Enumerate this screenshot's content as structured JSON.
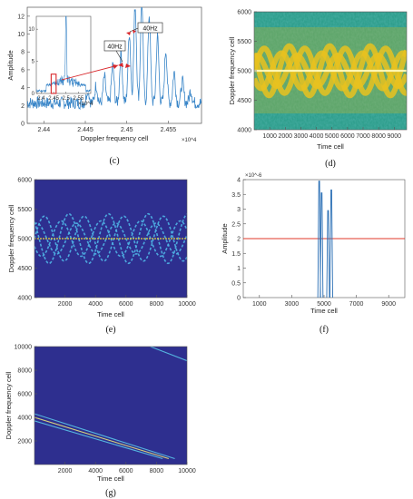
{
  "chart_data": [
    {
      "id": "c",
      "type": "line",
      "panel_label": "(c)",
      "xlabel": "Doppler frequency cell",
      "ylabel": "Amplitude",
      "x_exponent": "×10^4",
      "xlim": [
        2.438,
        2.459
      ],
      "ylim": [
        0,
        13
      ],
      "x_ticks": [
        2.44,
        2.445,
        2.45,
        2.455
      ],
      "x_tick_labels": [
        "2.44",
        "2.445",
        "2.45",
        "2.455"
      ],
      "y_ticks": [
        0,
        2,
        4,
        6,
        8,
        10,
        12
      ],
      "y_tick_labels": [
        "0",
        "2",
        "4",
        "6",
        "8",
        "10",
        "12"
      ],
      "annotations": [
        "40Hz",
        "40Hz"
      ],
      "peaks": [
        {
          "x": 2.4453,
          "y": 3.2
        },
        {
          "x": 2.4463,
          "y": 3.6
        },
        {
          "x": 2.4473,
          "y": 4.5
        },
        {
          "x": 2.4483,
          "y": 5.8
        },
        {
          "x": 2.4493,
          "y": 7.2
        },
        {
          "x": 2.4503,
          "y": 9.5
        },
        {
          "x": 2.451,
          "y": 12.5
        },
        {
          "x": 2.4518,
          "y": 12.8
        },
        {
          "x": 2.4527,
          "y": 11.5
        },
        {
          "x": 2.4537,
          "y": 9.0
        },
        {
          "x": 2.4547,
          "y": 7.5
        },
        {
          "x": 2.4557,
          "y": 5.0
        },
        {
          "x": 2.4567,
          "y": 4.0
        },
        {
          "x": 2.4577,
          "y": 3.0
        }
      ],
      "baseline": 1.6,
      "inset": {
        "xlim": [
          2.38,
          2.6
        ],
        "ylim": [
          0,
          12
        ],
        "x_ticks": [
          2.4,
          2.45,
          2.5,
          2.55
        ],
        "x_tick_labels": [
          "2.4",
          "2.45",
          "2.5",
          "2.55"
        ],
        "y_ticks": [
          0,
          5,
          10
        ],
        "y_tick_labels": [
          "0",
          "5",
          "10"
        ],
        "x_exponent": "×10^4",
        "highlight_xrange": [
          2.44,
          2.46
        ],
        "highlight_yrange": [
          0,
          3
        ],
        "main_peak": {
          "x": 2.5,
          "y": 11.5
        }
      }
    },
    {
      "id": "d",
      "type": "heatmap",
      "panel_label": "(d)",
      "xlabel": "Time cell",
      "ylabel": "Doppler frequency cell",
      "xlim": [
        0,
        9800
      ],
      "ylim": [
        4000,
        6000
      ],
      "x_ticks": [
        1000,
        2000,
        3000,
        4000,
        5000,
        6000,
        7000,
        8000,
        9000
      ],
      "x_tick_labels": [
        "1000",
        "2000",
        "3000",
        "4000",
        "5000",
        "6000",
        "7000",
        "8000",
        "9000"
      ],
      "y_ticks": [
        4000,
        4500,
        5000,
        5500,
        6000
      ],
      "y_tick_labels": [
        "4000",
        "4500",
        "5000",
        "5500",
        "6000"
      ],
      "center_line": 5000,
      "colors": {
        "background": "#2e9e8c",
        "signal": "#e9c21f",
        "line": "#fff6b0"
      }
    },
    {
      "id": "e",
      "type": "heatmap",
      "panel_label": "(e)",
      "xlabel": "Time cell",
      "ylabel": "Doppler frequency cell",
      "xlim": [
        0,
        10000
      ],
      "ylim": [
        4000,
        6000
      ],
      "x_ticks": [
        2000,
        4000,
        6000,
        8000,
        10000
      ],
      "x_tick_labels": [
        "2000",
        "4000",
        "6000",
        "8000",
        "10000"
      ],
      "y_ticks": [
        4000,
        4500,
        5000,
        5500,
        6000
      ],
      "y_tick_labels": [
        "4000",
        "4500",
        "5000",
        "5500",
        "6000"
      ],
      "center_line": 5000,
      "colors": {
        "background": "#2e2f8f",
        "signal": "#4fb4e6",
        "line": "#e6d23c"
      }
    },
    {
      "id": "f",
      "type": "line",
      "panel_label": "(f)",
      "xlabel": "Time cell",
      "ylabel": "Amplitude",
      "y_exponent": "×10^-6",
      "xlim": [
        0,
        10000
      ],
      "ylim": [
        0,
        4
      ],
      "x_ticks": [
        1000,
        3000,
        5000,
        7000,
        9000
      ],
      "x_tick_labels": [
        "1000",
        "3000",
        "5000",
        "7000",
        "9000"
      ],
      "y_ticks": [
        0,
        0.5,
        1,
        1.5,
        2,
        2.5,
        3,
        3.5,
        4
      ],
      "y_tick_labels": [
        "0",
        "0.5",
        "1",
        "1.5",
        "2",
        "2.5",
        "3",
        "3.5",
        "4"
      ],
      "threshold": 2,
      "spikes": [
        {
          "x": 4700,
          "y": 3.95
        },
        {
          "x": 4850,
          "y": 3.55
        },
        {
          "x": 5250,
          "y": 2.95
        },
        {
          "x": 5450,
          "y": 3.65
        }
      ],
      "colors": {
        "signal": "#2a6fb5",
        "threshold": "#e0392a"
      }
    },
    {
      "id": "g",
      "type": "heatmap",
      "panel_label": "(g)",
      "xlabel": "Time cell",
      "ylabel": "Doppler frequency cell",
      "xlim": [
        0,
        10000
      ],
      "ylim": [
        0,
        10000
      ],
      "x_ticks": [
        2000,
        4000,
        6000,
        8000,
        10000
      ],
      "x_tick_labels": [
        "2000",
        "4000",
        "6000",
        "8000",
        "10000"
      ],
      "y_ticks": [
        2000,
        4000,
        6000,
        8000,
        10000
      ],
      "y_tick_labels": [
        "2000",
        "4000",
        "6000",
        "8000",
        "10000"
      ],
      "lines": [
        {
          "x0": 0,
          "y0": 4300,
          "x1": 9200,
          "y1": 500
        },
        {
          "x0": 0,
          "y0": 4000,
          "x1": 8800,
          "y1": 500
        },
        {
          "x0": 0,
          "y0": 3700,
          "x1": 8400,
          "y1": 500
        },
        {
          "x0": 7600,
          "y0": 10000,
          "x1": 10000,
          "y1": 8800
        }
      ],
      "colors": {
        "background": "#2e2f8f",
        "signal": "#59c3e8"
      }
    }
  ]
}
